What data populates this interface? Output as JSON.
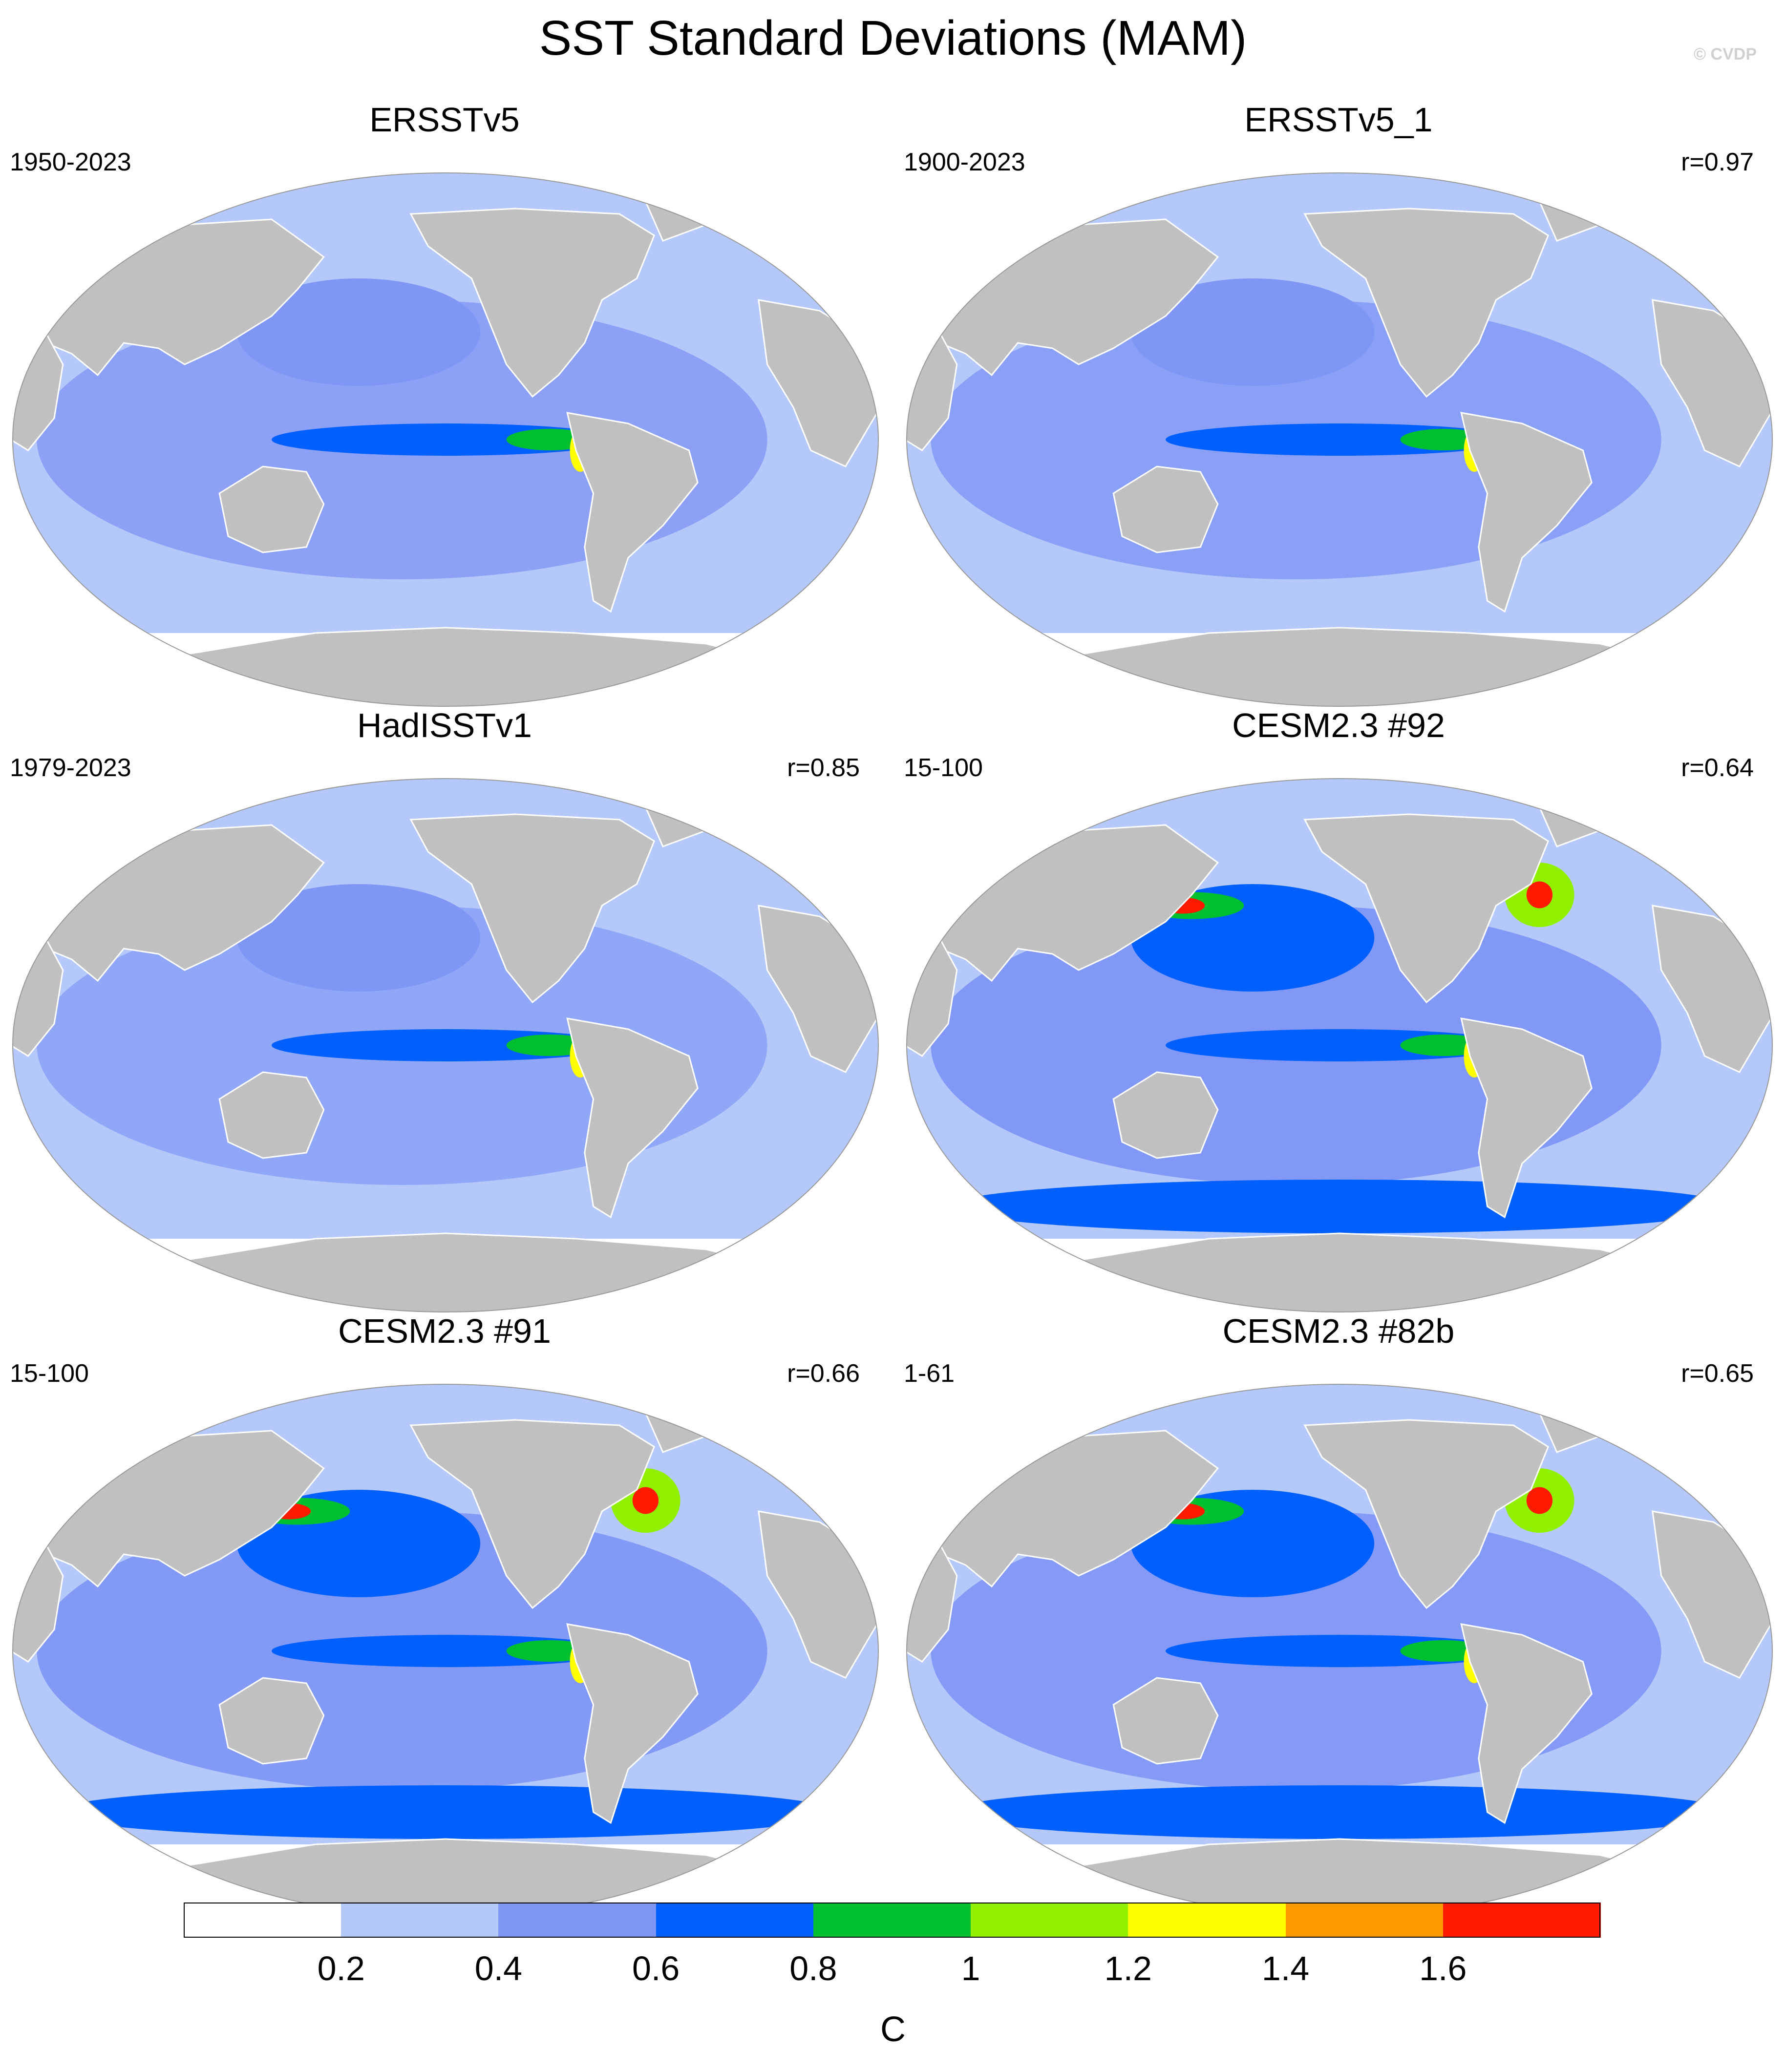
{
  "figure": {
    "title": "SST Standard Deviations (MAM)",
    "credit": "© CVDP"
  },
  "panels": [
    {
      "title": "ERSSTv5",
      "period": "1950-2023",
      "corr": "",
      "intensity": 0.55
    },
    {
      "title": "ERSSTv5_1",
      "period": "1900-2023",
      "corr": "r=0.97",
      "intensity": 0.6
    },
    {
      "title": "HadISSTv1",
      "period": "1979-2023",
      "corr": "r=0.85",
      "intensity": 0.35
    },
    {
      "title": "CESM2.3 #92",
      "period": "15-100",
      "corr": "r=0.64",
      "intensity": 1.0
    },
    {
      "title": "CESM2.3 #91",
      "period": "15-100",
      "corr": "r=0.66",
      "intensity": 0.95
    },
    {
      "title": "CESM2.3 #82b",
      "period": "1-61",
      "corr": "r=0.65",
      "intensity": 0.9
    }
  ],
  "colorbar": {
    "unit": "C",
    "ticks": [
      "0.2",
      "0.4",
      "0.6",
      "0.8",
      "1",
      "1.2",
      "1.4",
      "1.6"
    ],
    "colors": [
      "#ffffff",
      "#b4c8fa",
      "#7f96f5",
      "#0060ff",
      "#00c030",
      "#90f000",
      "#ffff00",
      "#ff9a00",
      "#ff1a00"
    ],
    "land_color": "#c0c0c0"
  }
}
